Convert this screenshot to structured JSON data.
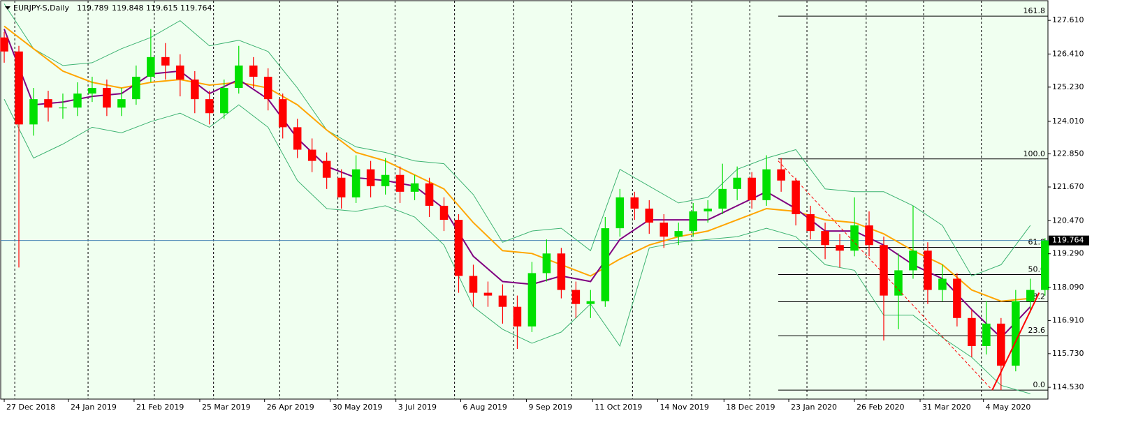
{
  "chart_data": {
    "type": "candlestick",
    "symbol": "EURJPY-S,Daily",
    "ohlc": [
      119.789,
      119.848,
      119.615,
      119.764
    ],
    "up_color": "#00e000",
    "down_color": "#ff0000",
    "xlim": [
      -1.2,
      356
    ],
    "ylim": [
      114.11,
      128.31
    ],
    "xticks": [
      {
        "value": 0,
        "label": "27 Dec 2018"
      },
      {
        "value": 21.9,
        "label": "24 Jan 2019"
      },
      {
        "value": 44.3,
        "label": "21 Feb 2019"
      },
      {
        "value": 66.7,
        "label": "25 Mar 2019"
      },
      {
        "value": 88.8,
        "label": "26 Apr 2019"
      },
      {
        "value": 111.2,
        "label": "30 May 2019"
      },
      {
        "value": 133.6,
        "label": "3 Jul 2019"
      },
      {
        "value": 155.7,
        "label": "6 Aug 2019"
      },
      {
        "value": 178.1,
        "label": "9 Sep 2019"
      },
      {
        "value": 200.7,
        "label": "11 Oct 2019"
      },
      {
        "value": 222.9,
        "label": "14 Nov 2019"
      },
      {
        "value": 245.5,
        "label": "18 Dec 2019"
      },
      {
        "value": 267.6,
        "label": "23 Jan 2020"
      },
      {
        "value": 290.0,
        "label": "26 Feb 2020"
      },
      {
        "value": 312.4,
        "label": "31 Mar 2020"
      },
      {
        "value": 334.0,
        "label": "4 May 2020"
      }
    ],
    "separators": [
      3.6,
      28.6,
      51.2,
      71.4,
      94.0,
      113.8,
      133.3,
      153.6,
      173.8,
      193.6,
      214.3,
      234.5,
      254.3,
      273.8,
      294.0,
      313.6,
      333.3
    ],
    "yticks": [
      {
        "value": 127.61,
        "label": "127.610"
      },
      {
        "value": 126.41,
        "label": "126.410"
      },
      {
        "value": 125.23,
        "label": "125.230"
      },
      {
        "value": 124.01,
        "label": "124.010"
      },
      {
        "value": 122.85,
        "label": "122.850"
      },
      {
        "value": 121.67,
        "label": "121.670"
      },
      {
        "value": 120.47,
        "label": "120.470"
      },
      {
        "value": 119.29,
        "label": "119.290"
      },
      {
        "value": 118.09,
        "label": "118.090"
      },
      {
        "value": 116.91,
        "label": "116.910"
      },
      {
        "value": 115.73,
        "label": "115.730"
      },
      {
        "value": 114.53,
        "label": "114.530"
      }
    ],
    "x": [
      0,
      5,
      10,
      15,
      20,
      25,
      30,
      35,
      40,
      45,
      50,
      55,
      60,
      65,
      70,
      75,
      80,
      85,
      90,
      95,
      100,
      105,
      110,
      115,
      120,
      125,
      130,
      135,
      140,
      145,
      150,
      155,
      160,
      165,
      170,
      175,
      180,
      185,
      190,
      195,
      200,
      205,
      210,
      215,
      220,
      225,
      230,
      235,
      240,
      245,
      250,
      255,
      260,
      265,
      270,
      275,
      280,
      285,
      290,
      295,
      300,
      305,
      310,
      315,
      320,
      325,
      330,
      335,
      340,
      345,
      350,
      355
    ],
    "candles": [
      [
        127.0,
        127.2,
        126.1,
        126.5
      ],
      [
        126.5,
        126.7,
        118.8,
        123.9
      ],
      [
        123.9,
        125.2,
        123.5,
        124.8
      ],
      [
        124.8,
        125.1,
        124.0,
        124.5
      ],
      [
        124.5,
        125.0,
        124.1,
        124.5
      ],
      [
        124.5,
        125.4,
        124.2,
        125.0
      ],
      [
        125.0,
        125.6,
        124.7,
        125.2
      ],
      [
        125.2,
        125.5,
        124.2,
        124.5
      ],
      [
        124.5,
        125.2,
        124.2,
        124.8
      ],
      [
        124.8,
        126.0,
        124.6,
        125.6
      ],
      [
        125.6,
        127.3,
        125.4,
        126.3
      ],
      [
        126.3,
        126.8,
        125.5,
        126.0
      ],
      [
        126.0,
        126.4,
        124.9,
        125.5
      ],
      [
        125.5,
        125.8,
        124.3,
        124.8
      ],
      [
        124.8,
        125.1,
        123.9,
        124.3
      ],
      [
        124.3,
        125.5,
        124.1,
        125.2
      ],
      [
        125.2,
        126.7,
        125.0,
        126.0
      ],
      [
        126.0,
        126.3,
        125.2,
        125.6
      ],
      [
        125.6,
        125.9,
        124.4,
        124.8
      ],
      [
        124.8,
        125.0,
        123.4,
        123.8
      ],
      [
        123.8,
        124.1,
        122.7,
        123.0
      ],
      [
        123.0,
        123.4,
        122.2,
        122.6
      ],
      [
        122.6,
        122.9,
        121.6,
        122.0
      ],
      [
        122.0,
        122.3,
        120.9,
        121.3
      ],
      [
        121.3,
        122.8,
        121.1,
        122.3
      ],
      [
        122.3,
        122.6,
        121.3,
        121.7
      ],
      [
        121.7,
        122.7,
        121.4,
        122.1
      ],
      [
        122.1,
        122.4,
        121.1,
        121.5
      ],
      [
        121.5,
        122.1,
        121.2,
        121.8
      ],
      [
        121.8,
        122.0,
        120.6,
        121.0
      ],
      [
        121.0,
        121.3,
        120.1,
        120.5
      ],
      [
        120.5,
        120.7,
        117.9,
        118.5
      ],
      [
        118.5,
        118.9,
        117.4,
        117.9
      ],
      [
        117.9,
        118.3,
        117.4,
        117.8
      ],
      [
        117.8,
        118.2,
        116.8,
        117.4
      ],
      [
        117.4,
        117.8,
        115.9,
        116.7
      ],
      [
        116.7,
        119.0,
        116.5,
        118.6
      ],
      [
        118.6,
        119.8,
        118.3,
        119.3
      ],
      [
        119.3,
        119.5,
        117.7,
        118.0
      ],
      [
        118.0,
        118.3,
        117.0,
        117.5
      ],
      [
        117.5,
        118.0,
        117.0,
        117.6
      ],
      [
        117.6,
        120.6,
        117.4,
        120.2
      ],
      [
        120.2,
        121.6,
        119.9,
        121.3
      ],
      [
        121.3,
        121.5,
        120.5,
        120.9
      ],
      [
        120.9,
        121.2,
        120.0,
        120.4
      ],
      [
        120.4,
        120.7,
        119.5,
        119.9
      ],
      [
        119.9,
        120.4,
        119.6,
        120.1
      ],
      [
        120.1,
        121.1,
        119.9,
        120.8
      ],
      [
        120.8,
        121.2,
        120.4,
        120.9
      ],
      [
        120.9,
        122.5,
        120.7,
        121.6
      ],
      [
        121.6,
        122.4,
        121.2,
        122.0
      ],
      [
        122.0,
        122.2,
        120.9,
        121.2
      ],
      [
        121.2,
        122.8,
        121.0,
        122.3
      ],
      [
        122.3,
        122.7,
        121.5,
        121.9
      ],
      [
        121.9,
        122.0,
        120.3,
        120.7
      ],
      [
        120.7,
        121.0,
        119.8,
        120.1
      ],
      [
        120.1,
        120.4,
        119.1,
        119.6
      ],
      [
        119.6,
        120.0,
        118.8,
        119.4
      ],
      [
        119.4,
        121.3,
        119.2,
        120.3
      ],
      [
        120.3,
        120.8,
        119.2,
        119.6
      ],
      [
        119.6,
        119.9,
        116.2,
        117.8
      ],
      [
        117.8,
        119.3,
        116.6,
        118.7
      ],
      [
        118.7,
        121.0,
        118.4,
        119.4
      ],
      [
        119.4,
        119.7,
        117.5,
        118.0
      ],
      [
        118.0,
        118.9,
        117.6,
        118.4
      ],
      [
        118.4,
        118.6,
        116.7,
        117.0
      ],
      [
        117.0,
        117.3,
        115.6,
        116.0
      ],
      [
        116.0,
        117.6,
        115.7,
        116.8
      ],
      [
        116.8,
        117.0,
        114.43,
        115.3
      ],
      [
        115.3,
        118.0,
        115.1,
        117.6
      ],
      [
        117.6,
        118.4,
        117.2,
        118.0
      ],
      [
        118.0,
        119.848,
        117.8,
        119.764
      ]
    ],
    "ind_x": [
      0,
      10,
      20,
      30,
      40,
      50,
      60,
      70,
      80,
      90,
      100,
      110,
      120,
      130,
      140,
      150,
      160,
      170,
      180,
      190,
      200,
      210,
      220,
      230,
      240,
      250,
      260,
      270,
      280,
      290,
      300,
      310,
      320,
      330,
      340,
      350
    ],
    "indicators": [
      {
        "color": "#3cb371",
        "width": 1,
        "values": [
          128.2,
          126.6,
          126.0,
          126.1,
          126.6,
          127.0,
          127.6,
          126.7,
          126.9,
          126.5,
          125.2,
          123.7,
          123.1,
          122.9,
          122.6,
          122.5,
          121.4,
          119.7,
          120.1,
          120.2,
          119.4,
          122.3,
          121.7,
          121.1,
          121.3,
          122.3,
          122.7,
          123.0,
          121.6,
          121.5,
          121.5,
          121.0,
          120.3,
          118.5,
          118.9,
          120.3
        ]
      },
      {
        "color": "#3cb371",
        "width": 1,
        "values": [
          124.8,
          122.7,
          123.2,
          123.8,
          123.6,
          124.0,
          124.3,
          123.8,
          124.6,
          123.8,
          121.9,
          120.9,
          120.8,
          121.0,
          120.6,
          119.6,
          117.4,
          116.6,
          116.1,
          116.5,
          117.5,
          116.0,
          119.5,
          119.7,
          119.8,
          119.9,
          120.2,
          119.9,
          118.9,
          118.7,
          117.1,
          117.1,
          116.3,
          115.6,
          114.6,
          114.3
        ]
      },
      {
        "color": "#ffa500",
        "width": 2,
        "values": [
          127.4,
          126.6,
          125.8,
          125.4,
          125.2,
          125.4,
          125.5,
          125.3,
          125.4,
          125.2,
          124.6,
          123.7,
          122.9,
          122.6,
          122.1,
          121.6,
          120.4,
          119.4,
          119.3,
          118.9,
          118.5,
          119.1,
          119.6,
          119.9,
          120.1,
          120.5,
          120.9,
          120.8,
          120.5,
          120.4,
          120.0,
          119.4,
          118.9,
          118.0,
          117.6,
          117.7
        ]
      },
      {
        "color": "#800080",
        "width": 2,
        "values": [
          127.3,
          124.6,
          124.7,
          124.9,
          125.0,
          125.7,
          125.8,
          125.0,
          125.5,
          124.8,
          123.4,
          122.4,
          122.0,
          121.9,
          121.7,
          120.9,
          119.2,
          118.3,
          118.2,
          118.5,
          118.3,
          119.8,
          120.5,
          120.5,
          120.5,
          121.0,
          121.5,
          120.9,
          120.1,
          120.1,
          119.6,
          118.9,
          118.4,
          117.3,
          116.3,
          117.4
        ]
      }
    ],
    "fibo_start": 264,
    "fibo_levels": [
      {
        "value": 127.76,
        "label": "161.8"
      },
      {
        "value": 122.67,
        "label": "100.0"
      },
      {
        "value": 119.52,
        "label": "61.8"
      },
      {
        "value": 118.55,
        "label": "50.0"
      },
      {
        "value": 117.58,
        "label": "38.2"
      },
      {
        "value": 116.37,
        "label": "23.6"
      },
      {
        "value": 114.43,
        "label": "0.0"
      }
    ],
    "trendlines": [
      {
        "style": "dashed",
        "x": [
          264,
          337
        ],
        "y": [
          122.6,
          114.43
        ]
      },
      {
        "style": "solid",
        "x": [
          337,
          353
        ],
        "y": [
          114.43,
          117.9
        ]
      }
    ]
  }
}
